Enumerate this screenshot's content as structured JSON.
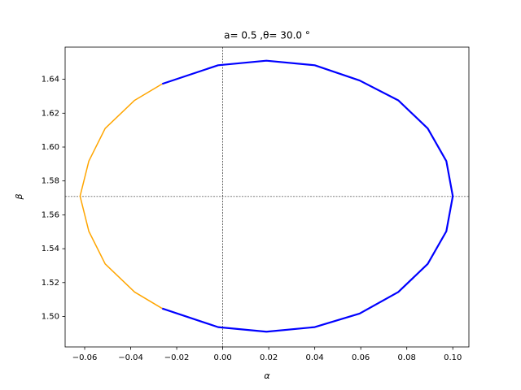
{
  "chart_data": {
    "type": "line",
    "title": "a= 0.5 ,θ= 30.0 °",
    "x_label": "α",
    "y_label": "β",
    "xlim": [
      -0.0685,
      0.107
    ],
    "ylim": [
      1.482,
      1.659
    ],
    "xticks": [
      {
        "value": -0.06,
        "label": "−0.06"
      },
      {
        "value": -0.04,
        "label": "−0.04"
      },
      {
        "value": -0.02,
        "label": "−0.02"
      },
      {
        "value": 0,
        "label": "0.00"
      },
      {
        "value": 0.02,
        "label": "0.02"
      },
      {
        "value": 0.04,
        "label": "0.04"
      },
      {
        "value": 0.06,
        "label": "0.06"
      },
      {
        "value": 0.08,
        "label": "0.08"
      },
      {
        "value": 0.1,
        "label": "0.10"
      }
    ],
    "yticks": [
      {
        "value": 1.5,
        "label": "1.50"
      },
      {
        "value": 1.52,
        "label": "1.52"
      },
      {
        "value": 1.54,
        "label": "1.54"
      },
      {
        "value": 1.56,
        "label": "1.56"
      },
      {
        "value": 1.58,
        "label": "1.58"
      },
      {
        "value": 1.6,
        "label": "1.60"
      },
      {
        "value": 1.62,
        "label": "1.62"
      },
      {
        "value": 1.64,
        "label": "1.64"
      }
    ],
    "reference_lines": {
      "x": 0,
      "y": 1.5708
    },
    "series": [
      {
        "color": "#ffa500",
        "width": 1.5,
        "x": [
          -0.0263,
          -0.0383,
          -0.0511,
          -0.0582,
          -0.062,
          -0.0582,
          -0.0511,
          -0.0383,
          -0.0263
        ],
        "values": [
          1.6373,
          1.6276,
          1.611,
          1.5917,
          1.571,
          1.5503,
          1.531,
          1.5144,
          1.5047
        ]
      },
      {
        "color": "#0000ff",
        "width": 2.2,
        "x": [
          -0.0263,
          -0.002,
          0.019,
          0.04,
          0.0595,
          0.0763,
          0.0891,
          0.0972,
          0.1,
          0.0972,
          0.0891,
          0.0763,
          0.0595,
          0.04,
          0.019,
          -0.002,
          -0.0263
        ],
        "values": [
          1.5047,
          1.4937,
          1.491,
          1.4937,
          1.5017,
          1.5144,
          1.531,
          1.5503,
          1.571,
          1.5917,
          1.611,
          1.6276,
          1.6393,
          1.6483,
          1.651,
          1.6483,
          1.6373
        ]
      }
    ]
  }
}
